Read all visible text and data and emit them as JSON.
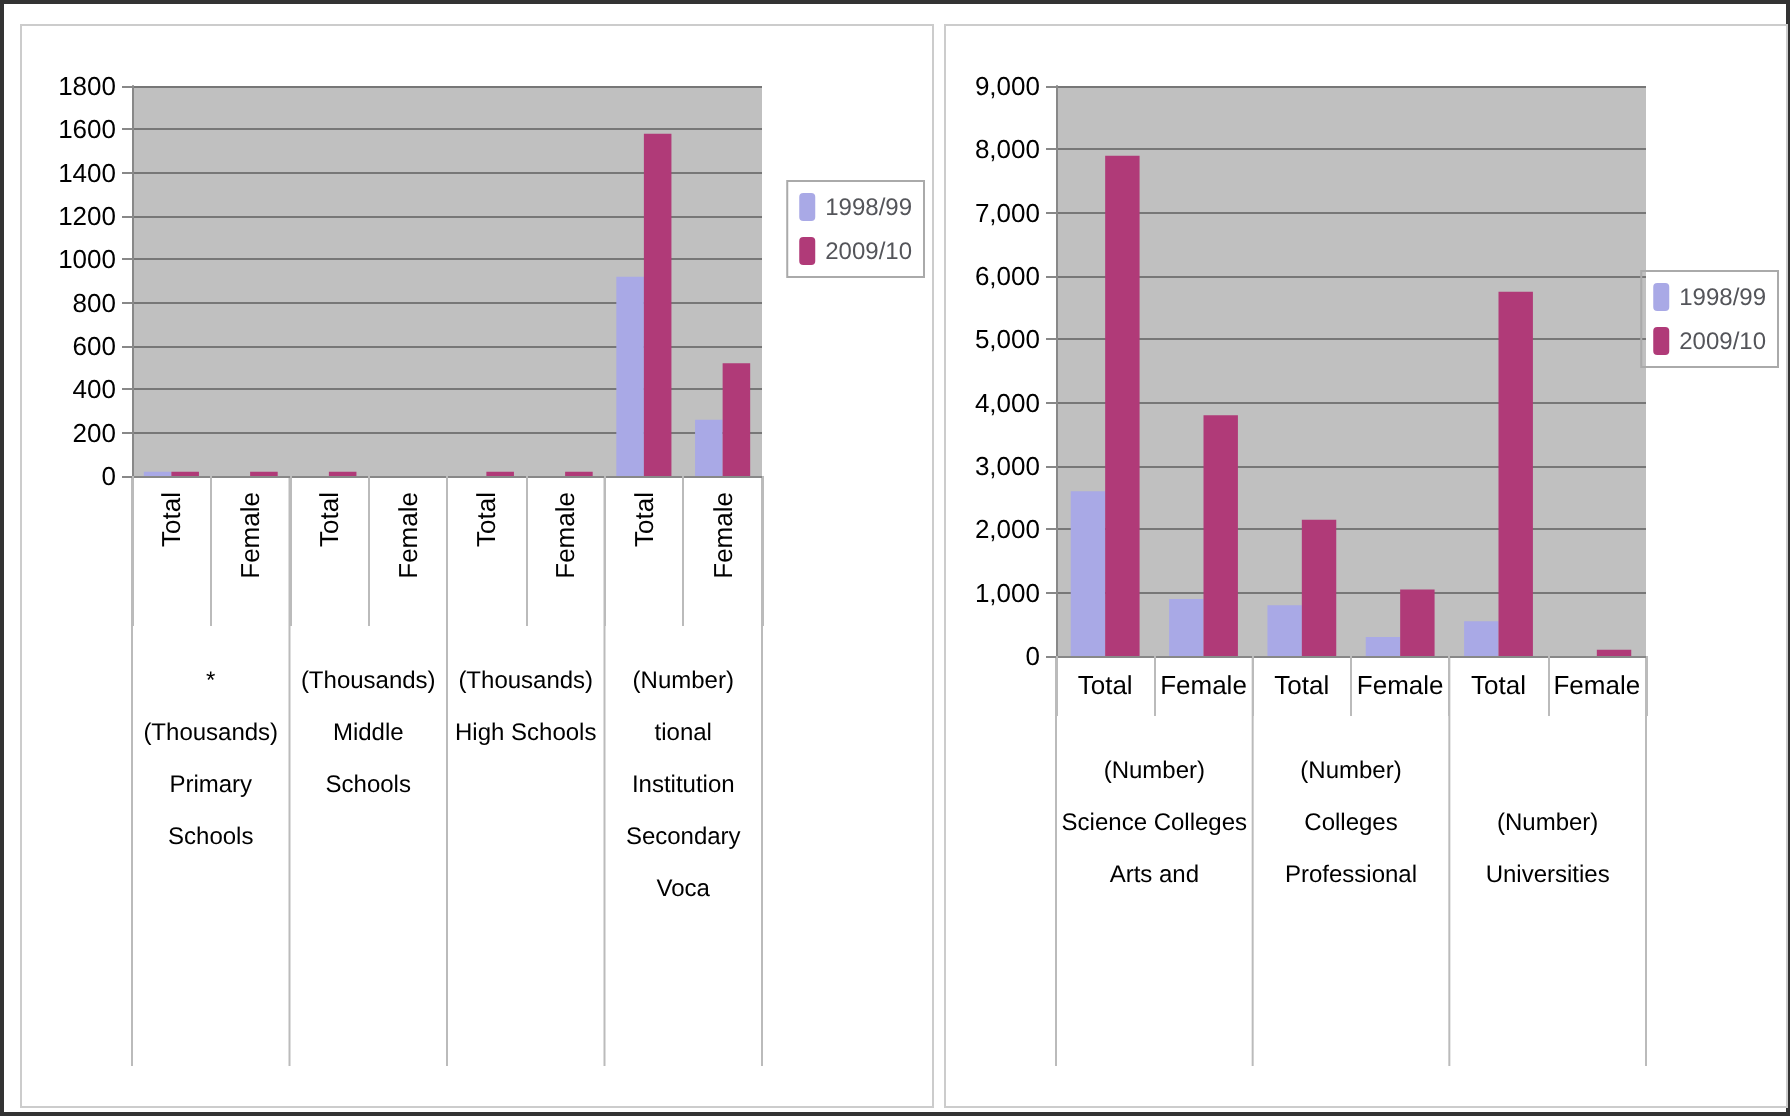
{
  "chart_data": [
    {
      "type": "bar",
      "categories": [
        "Total",
        "Female",
        "Total",
        "Female",
        "Total",
        "Female",
        "Total",
        "Female"
      ],
      "series": [
        {
          "name": "1998/99",
          "color": "#a9a9e6",
          "values": [
            20,
            0,
            0,
            null,
            0,
            null,
            920,
            260
          ]
        },
        {
          "name": "2009/10",
          "color": "#b03a78",
          "values": [
            20,
            20,
            20,
            0,
            20,
            20,
            1580,
            520
          ]
        }
      ],
      "annotations": [
        "*\n(Thousands)\nPrimary\nSchools",
        "(Thousands)\nMiddle\nSchools",
        "(Thousands)\nHigh Schools",
        "(Number)\ntional\nInstitution\nSecondary\nVoca"
      ],
      "ylim": [
        0,
        1800
      ],
      "yticks": [
        0,
        200,
        400,
        600,
        800,
        1000,
        1200,
        1400,
        1600,
        1800
      ],
      "grid": "y",
      "legend": "right"
    },
    {
      "type": "bar",
      "categories": [
        "Total",
        "Female",
        "Total",
        "Female",
        "Total",
        "Female"
      ],
      "series": [
        {
          "name": "1998/99",
          "color": "#a9a9e6",
          "values": [
            2600,
            900,
            800,
            300,
            550,
            null
          ]
        },
        {
          "name": "2009/10",
          "color": "#b03a78",
          "values": [
            7900,
            3800,
            2150,
            1050,
            5750,
            100
          ]
        }
      ],
      "annotations": [
        "(Number)\nScience Colleges\nArts and",
        "(Number)\nColleges\nProfessional",
        "\n(Number)\nUniversities"
      ],
      "ylim": [
        0,
        9000
      ],
      "yticks": [
        0,
        {
          "value": 1000,
          "label": "1,000"
        },
        {
          "value": 2000,
          "label": "2,000"
        },
        {
          "value": 3000,
          "label": "3,000"
        },
        {
          "value": 4000,
          "label": "4,000"
        },
        {
          "value": 5000,
          "label": "5,000"
        },
        {
          "value": 6000,
          "label": "6,000"
        },
        {
          "value": 7000,
          "label": "7,000"
        },
        {
          "value": 8000,
          "label": "8,000"
        },
        {
          "value": 9000,
          "label": "9,000"
        }
      ],
      "grid": "y",
      "legend": "right"
    }
  ]
}
